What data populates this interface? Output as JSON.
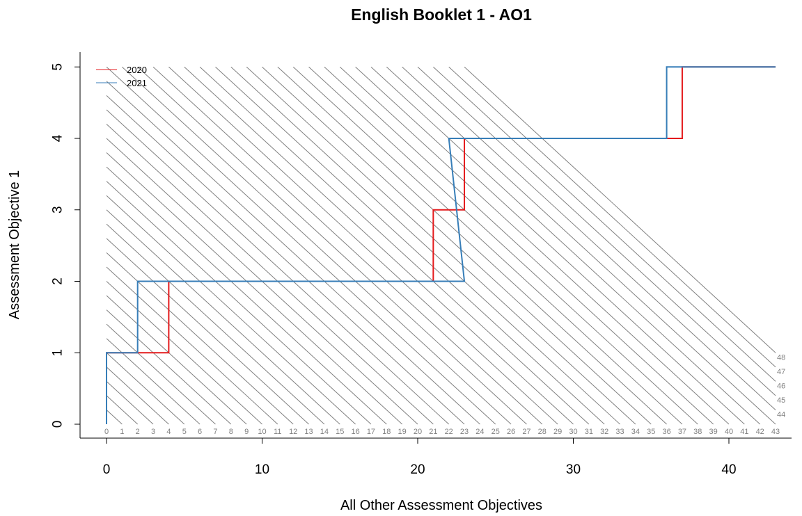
{
  "chart_data": {
    "type": "line",
    "title": "English Booklet 1 - AO1",
    "xlabel": "All Other Assessment Objectives",
    "ylabel": "Assessment Objective 1",
    "xlim": [
      0,
      43
    ],
    "ylim": [
      0,
      5
    ],
    "x_ticks": [
      "0",
      "10",
      "20",
      "30",
      "40"
    ],
    "y_ticks": [
      "0",
      "1",
      "2",
      "3",
      "4",
      "5"
    ],
    "legend_position": "top-left",
    "grid": false,
    "total_lines": {
      "labels": [
        "0",
        "1",
        "2",
        "3",
        "4",
        "5",
        "6",
        "7",
        "8",
        "9",
        "10",
        "11",
        "12",
        "13",
        "14",
        "15",
        "16",
        "17",
        "18",
        "19",
        "20",
        "21",
        "22",
        "23",
        "24",
        "25",
        "26",
        "27",
        "28",
        "29",
        "30",
        "31",
        "32",
        "33",
        "34",
        "35",
        "36",
        "37",
        "38",
        "39",
        "40",
        "41",
        "42",
        "43",
        "44",
        "45",
        "46",
        "47",
        "48"
      ],
      "color": "#808080"
    },
    "series": [
      {
        "name": "2020",
        "color": "#e41a1c",
        "points": [
          [
            0,
            0
          ],
          [
            0,
            1
          ],
          [
            4,
            1
          ],
          [
            4,
            2
          ],
          [
            21,
            2
          ],
          [
            21,
            3
          ],
          [
            23,
            3
          ],
          [
            23,
            4
          ],
          [
            37,
            4
          ],
          [
            37,
            5
          ],
          [
            43,
            5
          ]
        ]
      },
      {
        "name": "2021",
        "color": "#377eb8",
        "points": [
          [
            0,
            0
          ],
          [
            0,
            1
          ],
          [
            2,
            1
          ],
          [
            2,
            2
          ],
          [
            23,
            2
          ],
          [
            22,
            4
          ],
          [
            36,
            4
          ],
          [
            36,
            5
          ],
          [
            43,
            5
          ]
        ]
      }
    ]
  }
}
